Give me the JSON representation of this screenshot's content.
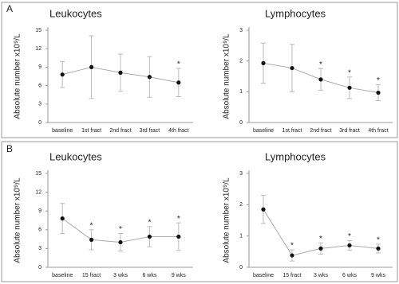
{
  "panel_labels": [
    "A",
    "B"
  ],
  "chart_data": [
    {
      "type": "line",
      "title": "Leukocytes",
      "y_label": "Absolute number x10⁹/L",
      "categories": [
        "baseline",
        "1st fract",
        "2nd fract",
        "3rd fract",
        "4th fract"
      ],
      "values": [
        7.8,
        9.0,
        8.1,
        7.4,
        6.5
      ],
      "errors": [
        2.1,
        5.1,
        3.0,
        3.3,
        2.3
      ],
      "significance": [
        null,
        null,
        null,
        null,
        "*"
      ],
      "ylim": [
        0,
        15
      ],
      "yticks": [
        0,
        3,
        6,
        9,
        12,
        15
      ],
      "color": "#111",
      "line_color": "#aaa"
    },
    {
      "type": "line",
      "title": "Lymphocytes",
      "y_label": "Absolute number x10⁹/L",
      "categories": [
        "baseline",
        "1st fract",
        "2nd fract",
        "3rd fract",
        "4th fract"
      ],
      "values": [
        1.93,
        1.77,
        1.4,
        1.13,
        0.97
      ],
      "errors": [
        0.65,
        0.77,
        0.35,
        0.35,
        0.26
      ],
      "significance": [
        null,
        null,
        "*",
        "*",
        "*"
      ],
      "ylim": [
        0,
        3
      ],
      "yticks": [
        0,
        1,
        2,
        3
      ],
      "color": "#111",
      "line_color": "#aaa"
    },
    {
      "type": "line",
      "title": "Leukocytes",
      "y_label": "Absolute number x10⁹/L",
      "categories": [
        "baseline",
        "15 fract",
        "3 wks",
        "6 wks",
        "9 wks"
      ],
      "values": [
        7.8,
        4.4,
        4.0,
        4.9,
        4.9
      ],
      "errors": [
        2.4,
        1.6,
        1.4,
        1.6,
        2.2
      ],
      "significance": [
        null,
        "*",
        "*",
        "*",
        "*"
      ],
      "ylim": [
        0,
        15
      ],
      "yticks": [
        0,
        3,
        6,
        9,
        12,
        15
      ],
      "color": "#111",
      "line_color": "#aaa"
    },
    {
      "type": "line",
      "title": "Lymphocytes",
      "y_label": "Absolute number x10⁹/L",
      "categories": [
        "baseline",
        "15 fract",
        "3 wks",
        "6 wks",
        "9 wks"
      ],
      "values": [
        1.85,
        0.38,
        0.6,
        0.7,
        0.6
      ],
      "errors": [
        0.45,
        0.18,
        0.18,
        0.15,
        0.14
      ],
      "significance": [
        null,
        "*",
        "*",
        "*",
        "*"
      ],
      "ylim": [
        0,
        3
      ],
      "yticks": [
        0,
        1,
        2,
        3
      ],
      "color": "#111",
      "line_color": "#aaa"
    }
  ]
}
